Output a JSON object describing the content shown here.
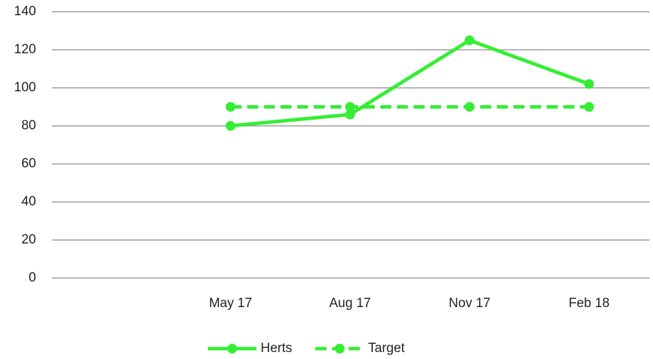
{
  "chart_data": {
    "type": "line",
    "categories": [
      null,
      "May 17",
      "Aug 17",
      "Nov 17",
      "Feb 18"
    ],
    "series": [
      {
        "name": "Herts",
        "color": "#33ee33",
        "dash": false,
        "values": [
          null,
          80,
          86,
          125,
          102
        ]
      },
      {
        "name": "Target",
        "color": "#33ee33",
        "dash": true,
        "values": [
          null,
          90,
          90,
          90,
          90
        ]
      }
    ],
    "ylim": [
      0,
      140
    ],
    "yticks": [
      0,
      20,
      40,
      60,
      80,
      100,
      120,
      140
    ],
    "grid": true,
    "legend": "bottom"
  }
}
